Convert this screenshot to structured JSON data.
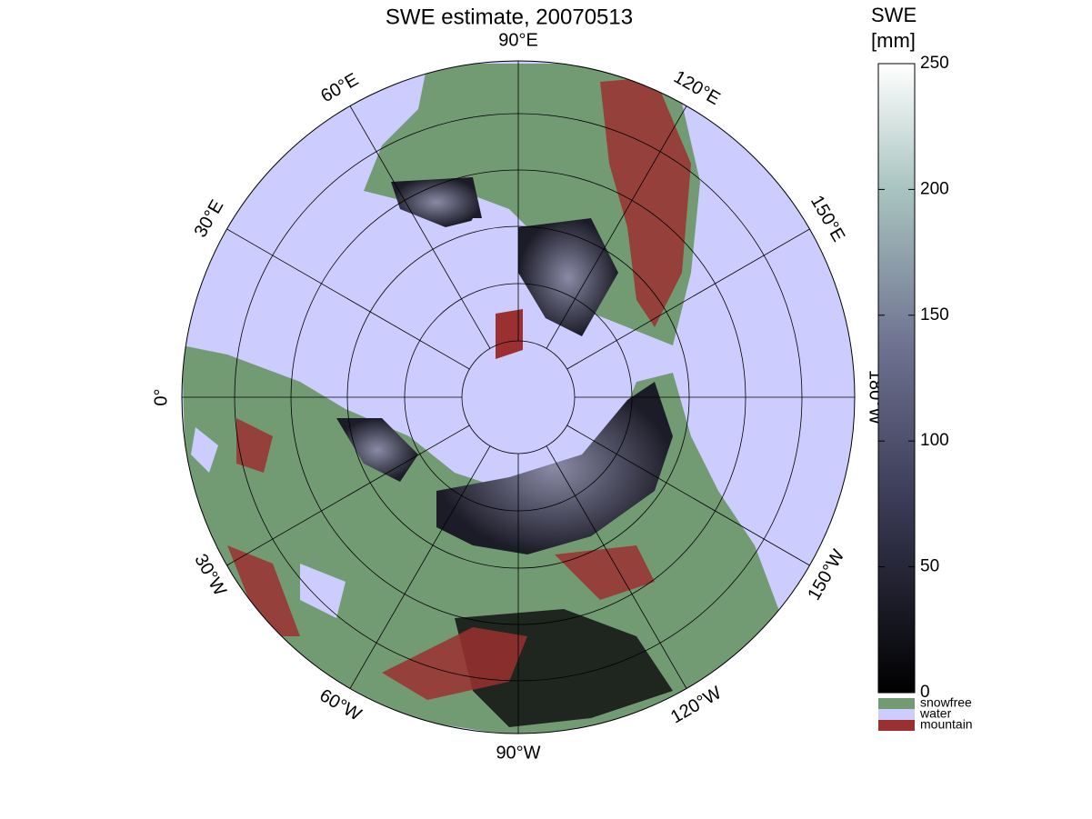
{
  "title": "SWE estimate, 20070513",
  "longitude_labels": [
    "0°",
    "30°E",
    "60°E",
    "90°E",
    "120°E",
    "150°E",
    "180°W",
    "150°W",
    "120°W",
    "90°W",
    "60°W",
    "30°W"
  ],
  "colorbar": {
    "label": [
      "SWE",
      "[mm]"
    ],
    "ylim": [
      0,
      250
    ],
    "yticks": [
      0,
      50,
      100,
      150,
      200,
      250
    ]
  },
  "legend": [
    {
      "name": "snowfree",
      "color": "#739b73"
    },
    {
      "name": "water",
      "color": "#ccccff"
    },
    {
      "name": "mountain",
      "color": "#9b3030"
    }
  ]
}
